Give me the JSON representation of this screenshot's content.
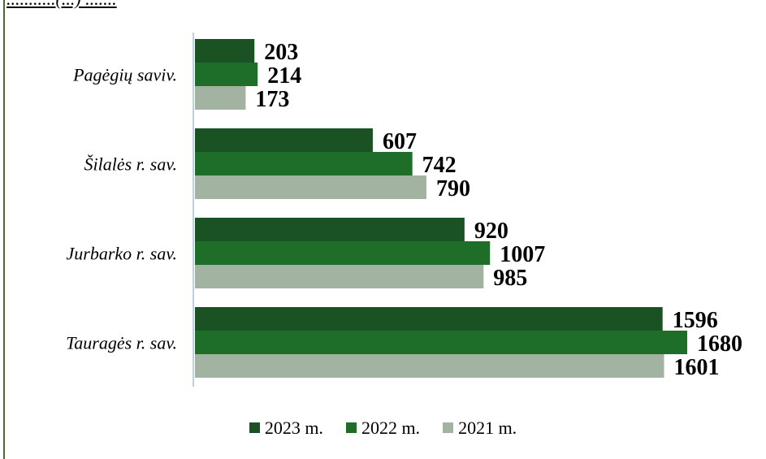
{
  "chart_data": {
    "type": "bar",
    "orientation": "horizontal",
    "categories": [
      "Pagėgių saviv.",
      "Šilalės r. sav.",
      "Jurbarko r. sav.",
      "Tauragės r. sav."
    ],
    "series": [
      {
        "name": "2023 m.",
        "color": "#1a5224",
        "values": [
          203,
          607,
          920,
          1596
        ]
      },
      {
        "name": "2022 m.",
        "color": "#1e6e2a",
        "values": [
          214,
          742,
          1007,
          1680
        ]
      },
      {
        "name": "2021 m.",
        "color": "#a3b3a1",
        "values": [
          173,
          790,
          985,
          1601
        ]
      }
    ],
    "xlim": [
      0,
      1700
    ],
    "grid": false,
    "legend_position": "bottom",
    "title": "...........(...) ......."
  }
}
